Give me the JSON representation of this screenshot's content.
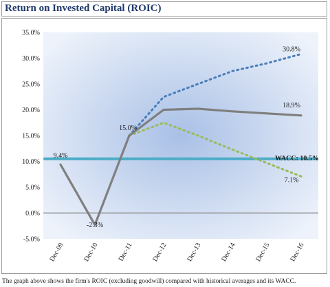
{
  "header": {
    "title": "Return on Invested Capital (ROIC)"
  },
  "caption": "The graph above shows the firm's ROIC (excluding goodwill) compared with historical averages and its WACC.",
  "colors": {
    "roic": "#7f7f7f",
    "high_projection": "#4a7ebb",
    "low_projection": "#9bbb59",
    "wacc": "#4bacc6",
    "plot_center": "#a9c0e6",
    "plot_edge": "#eef3fb"
  },
  "chart_data": {
    "type": "line",
    "categories": [
      "Dec-09",
      "Dec-10",
      "Dec-11",
      "Dec-12",
      "Dec-13",
      "Dec-14",
      "Dec-15",
      "Dec-16"
    ],
    "ylim": [
      -5,
      35
    ],
    "yticks": [
      "-5.0%",
      "0.0%",
      "5.0%",
      "10.0%",
      "15.0%",
      "20.0%",
      "25.0%",
      "30.0%",
      "35.0%"
    ],
    "grid": false,
    "series": [
      {
        "key": "roic",
        "style": "solid",
        "values": [
          9.4,
          -2.3,
          15.0,
          20.0,
          20.2,
          19.7,
          19.3,
          18.9
        ]
      },
      {
        "key": "high_projection",
        "style": "dotted",
        "values": [
          null,
          null,
          15.0,
          22.5,
          25.0,
          27.5,
          29.0,
          30.8
        ]
      },
      {
        "key": "low_projection",
        "style": "dotted",
        "values": [
          null,
          null,
          15.0,
          17.5,
          15.0,
          12.3,
          9.7,
          7.1
        ]
      },
      {
        "key": "wacc",
        "style": "solid",
        "values": [
          10.5,
          10.5,
          10.5,
          10.5,
          10.5,
          10.5,
          10.5,
          10.5
        ]
      }
    ],
    "annotations": [
      {
        "text": "9.4%",
        "x": "Dec-09",
        "y": 9.4
      },
      {
        "text": "-2.3%",
        "x": "Dec-10",
        "y": -2.3
      },
      {
        "text": "15.0%",
        "x": "Dec-11",
        "y": 15.0
      },
      {
        "text": "30.8%",
        "x": "Dec-16",
        "y": 30.8
      },
      {
        "text": "18.9%",
        "x": "Dec-16",
        "y": 18.9
      },
      {
        "text": "WACC: 10.5%",
        "x": "Dec-16",
        "y": 10.5
      },
      {
        "text": "7.1%",
        "x": "Dec-16",
        "y": 7.1
      }
    ]
  }
}
